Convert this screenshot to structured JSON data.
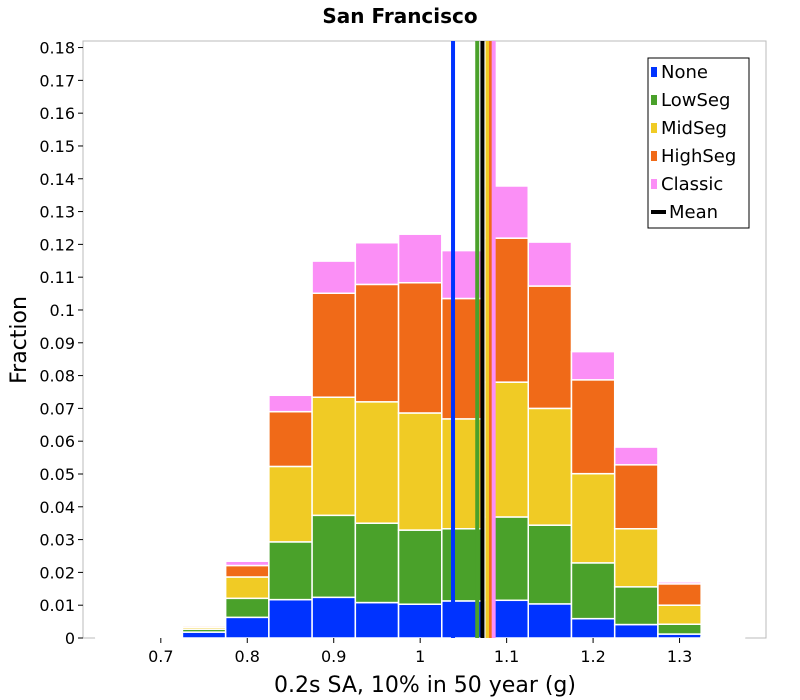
{
  "chart_data": {
    "type": "bar",
    "stacked": true,
    "title": "San Francisco",
    "xlabel": "0.2s SA, 10% in 50 year (g)",
    "ylabel": "Fraction",
    "xlim": [
      0.61,
      1.4
    ],
    "ylim": [
      0,
      0.182
    ],
    "x_ticks": [
      "0.7",
      "0.8",
      "0.9",
      "1",
      "1.1",
      "1.2",
      "1.3"
    ],
    "y_ticks": [
      "0",
      "0.01",
      "0.02",
      "0.03",
      "0.04",
      "0.05",
      "0.06",
      "0.07",
      "0.08",
      "0.09",
      "0.1",
      "0.11",
      "0.12",
      "0.13",
      "0.14",
      "0.15",
      "0.16",
      "0.17",
      "0.18"
    ],
    "bin_width": 0.05,
    "x": [
      0.65,
      0.7,
      0.75,
      0.8,
      0.85,
      0.9,
      0.95,
      1.0,
      1.05,
      1.1,
      1.15,
      1.2,
      1.25,
      1.3,
      1.35
    ],
    "series": [
      {
        "name": "None",
        "color": "#0033ff",
        "values": [
          0.0001,
          0.0004,
          0.0018,
          0.0063,
          0.0117,
          0.0124,
          0.0108,
          0.0103,
          0.0113,
          0.0115,
          0.0104,
          0.0059,
          0.0041,
          0.0012,
          0.0001
        ]
      },
      {
        "name": "LowSeg",
        "color": "#4aa12a",
        "values": [
          0.0001,
          0.0001,
          0.0009,
          0.0058,
          0.0176,
          0.025,
          0.0242,
          0.0226,
          0.022,
          0.0254,
          0.024,
          0.017,
          0.0115,
          0.003,
          0.0001
        ]
      },
      {
        "name": "MidSeg",
        "color": "#f0cb25",
        "values": [
          0.0001,
          0.0001,
          0.0006,
          0.0065,
          0.023,
          0.036,
          0.037,
          0.0357,
          0.0335,
          0.0411,
          0.0356,
          0.0272,
          0.0177,
          0.0058,
          0.0001
        ]
      },
      {
        "name": "HighSeg",
        "color": "#f06a18",
        "values": [
          0.0001,
          0.0001,
          0.0005,
          0.0035,
          0.0167,
          0.0317,
          0.0358,
          0.0397,
          0.0367,
          0.0439,
          0.0373,
          0.0286,
          0.0195,
          0.0065,
          0.0001
        ]
      },
      {
        "name": "Classic",
        "color": "#fb8ff6",
        "values": [
          0.0001,
          0.0001,
          0.0002,
          0.0013,
          0.005,
          0.0098,
          0.0127,
          0.0148,
          0.0146,
          0.0159,
          0.0134,
          0.0086,
          0.0054,
          0.0006,
          0.0001
        ]
      }
    ],
    "vertical_lines": [
      {
        "name": "None",
        "color": "#0033ff",
        "x": 1.038
      },
      {
        "name": "LowSeg",
        "color": "#4aa12a",
        "x": 1.066
      },
      {
        "name": "MidSeg",
        "color": "#f0cb25",
        "x": 1.078
      },
      {
        "name": "HighSeg",
        "color": "#f06a18",
        "x": 1.082
      },
      {
        "name": "Classic",
        "color": "#fb8ff6",
        "x": 1.085
      },
      {
        "name": "Mean",
        "color": "#000000",
        "x": 1.072
      }
    ],
    "legend": {
      "placement": "top-right",
      "entries": [
        {
          "label": "None",
          "color": "#0033ff",
          "kind": "box"
        },
        {
          "label": "LowSeg",
          "color": "#4aa12a",
          "kind": "box"
        },
        {
          "label": "MidSeg",
          "color": "#f0cb25",
          "kind": "box"
        },
        {
          "label": "HighSeg",
          "color": "#f06a18",
          "kind": "box"
        },
        {
          "label": "Classic",
          "color": "#fb8ff6",
          "kind": "box"
        },
        {
          "label": "Mean",
          "color": "#000000",
          "kind": "line"
        }
      ]
    },
    "grid": false
  }
}
